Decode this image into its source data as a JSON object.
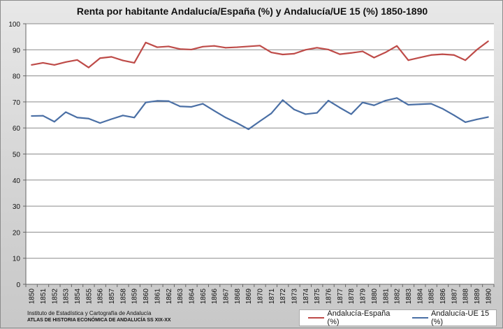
{
  "chart_data": {
    "type": "line",
    "title": "Renta por habitante Andalucía/España (%) y Andalucía/UE 15 (%) 1850-1890",
    "xlabel": "",
    "ylabel": "",
    "ylim": [
      0,
      100
    ],
    "yticks": [
      0,
      10,
      20,
      30,
      40,
      50,
      60,
      70,
      80,
      90,
      100
    ],
    "grid": true,
    "legend_position": "bottom-right",
    "x": [
      "1850",
      "1851",
      "1852",
      "1853",
      "1854",
      "1855",
      "1856",
      "1857",
      "1858",
      "1859",
      "1860",
      "1861",
      "1862",
      "1863",
      "1864",
      "1865",
      "1866",
      "1867",
      "1868",
      "1869",
      "1870",
      "1871",
      "1872",
      "1873",
      "1874",
      "1875",
      "1876",
      "1877",
      "1878",
      "1879",
      "1880",
      "1881",
      "1882",
      "1883",
      "1884",
      "1885",
      "1886",
      "1887",
      "1888",
      "1889",
      "1890"
    ],
    "series": [
      {
        "name": "Andalucía-España (%)",
        "color": "#be4b48",
        "values": [
          84.2,
          85.0,
          84.2,
          85.3,
          86.1,
          83.2,
          86.8,
          87.3,
          85.9,
          85.0,
          92.8,
          91.0,
          91.3,
          90.3,
          90.1,
          91.2,
          91.5,
          90.8,
          91.0,
          91.3,
          91.6,
          89.0,
          88.2,
          88.5,
          90.0,
          90.8,
          90.1,
          88.3,
          88.8,
          89.4,
          87.0,
          89.0,
          91.5,
          86.0,
          87.0,
          88.0,
          88.3,
          88.0,
          86.0,
          90.0,
          93.3
        ]
      },
      {
        "name": "Andalucía-UE 15 (%)",
        "color": "#4a6fa5",
        "values": [
          64.6,
          64.7,
          62.4,
          66.1,
          64.0,
          63.6,
          61.9,
          63.4,
          64.8,
          64.0,
          69.8,
          70.4,
          70.3,
          68.3,
          68.1,
          69.3,
          66.6,
          64.0,
          61.9,
          59.5,
          62.6,
          65.6,
          70.7,
          67.1,
          65.3,
          65.8,
          70.5,
          67.8,
          65.3,
          69.8,
          68.7,
          70.5,
          71.5,
          68.9,
          69.1,
          69.3,
          67.4,
          64.9,
          62.2,
          63.3,
          64.2
        ]
      }
    ]
  },
  "credits": {
    "line1": "Instituto de Estadística y Cartografía de Andalucía",
    "line2": "ATLAS DE HISTORIA ECONÓMICA DE ANDALUCÍA SS XIX-XX"
  }
}
